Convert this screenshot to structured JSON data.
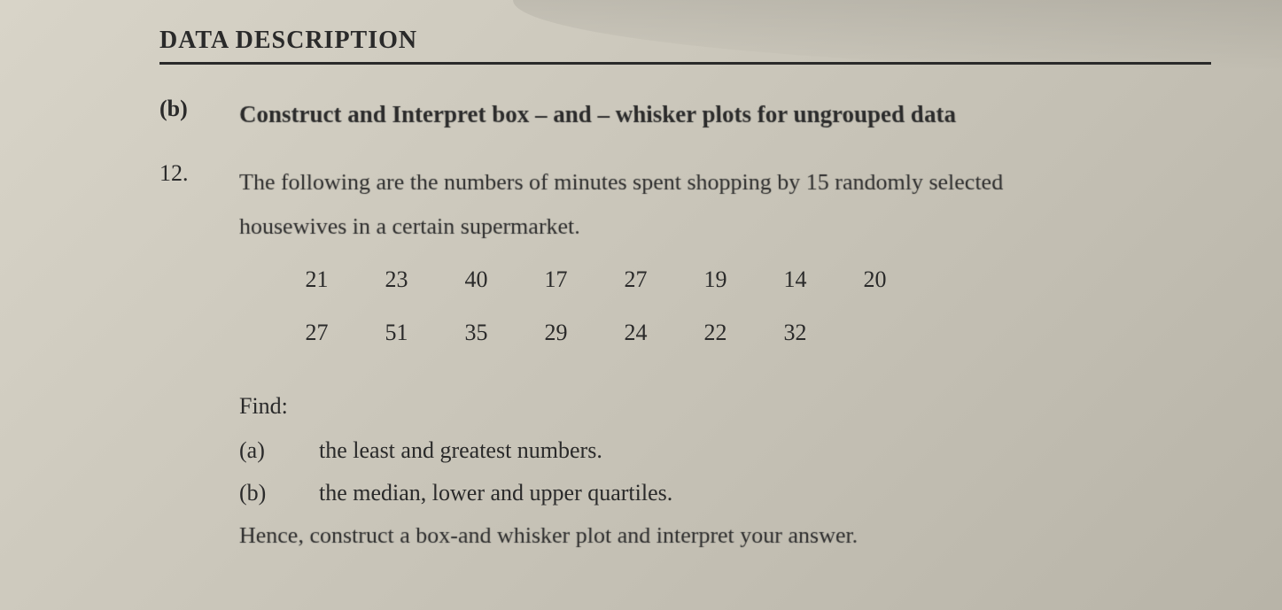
{
  "header": {
    "title": "DATA DESCRIPTION"
  },
  "section": {
    "label": "(b)",
    "subtitle": "Construct and Interpret box – and – whisker plots for ungrouped data"
  },
  "question": {
    "number": "12.",
    "text_line1": "The following are the numbers of minutes spent shopping by 15 randomly selected",
    "text_line2": "housewives in a certain supermarket.",
    "data_row1": [
      "21",
      "23",
      "40",
      "17",
      "27",
      "19",
      "14",
      "20"
    ],
    "data_row2": [
      "27",
      "51",
      "35",
      "29",
      "24",
      "22",
      "32"
    ],
    "find_label": "Find:",
    "parts": [
      {
        "label": "(a)",
        "text": "the least and greatest numbers."
      },
      {
        "label": "(b)",
        "text": "the median, lower and upper quartiles."
      }
    ],
    "hence_text": "Hence, construct a box-and whisker plot and interpret your answer."
  },
  "styling": {
    "background_gradient_start": "#d8d4c8",
    "background_gradient_end": "#b8b4a8",
    "text_color": "#2a2a2a",
    "font_family": "Georgia, Times New Roman, serif",
    "header_fontsize": 28,
    "body_fontsize": 26,
    "underline_thickness": 3
  }
}
